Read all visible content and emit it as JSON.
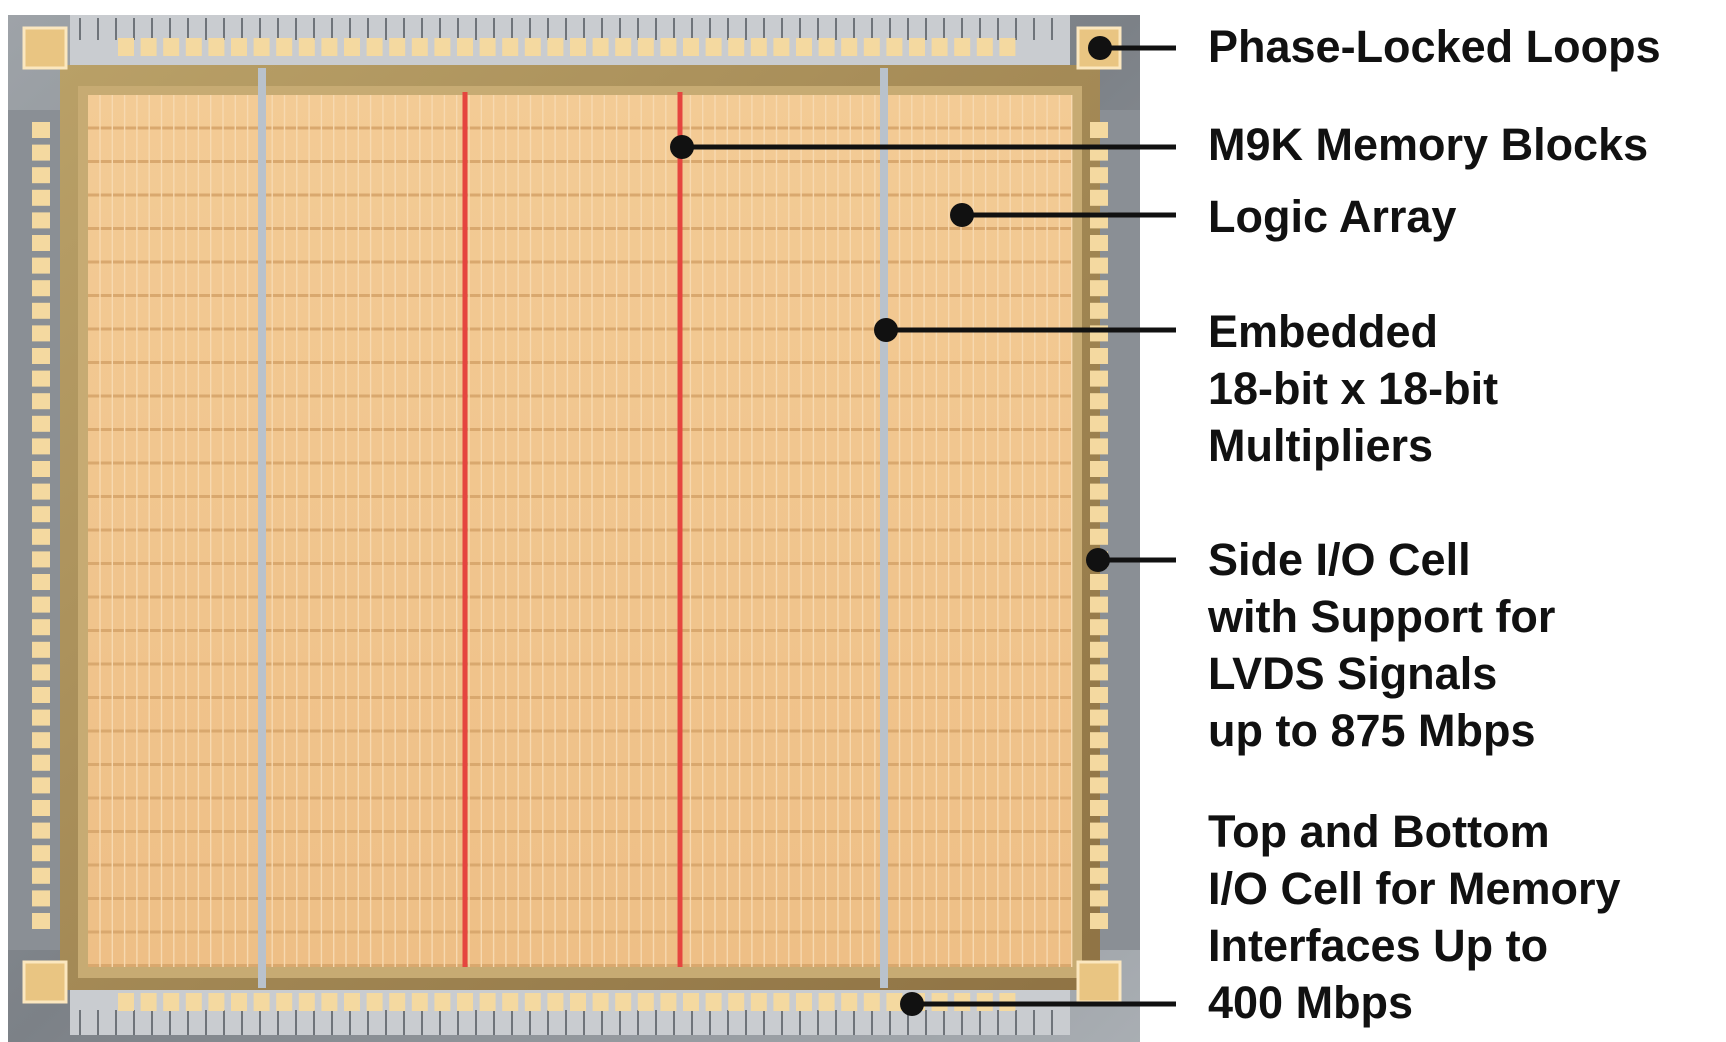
{
  "colors": {
    "pin": "#f4d9a0",
    "core": "#f1c68e",
    "frame": "#a58a52",
    "ring": "#8e949a",
    "memory_column": "#e5453f",
    "multiplier_column": "#b9c2cc",
    "leader": "#111111",
    "text": "#111111"
  },
  "labels": {
    "pll": [
      "Phase-Locked Loops"
    ],
    "m9k": [
      "M9K Memory Blocks"
    ],
    "logic": [
      "Logic Array"
    ],
    "mult": [
      "Embedded",
      "18-bit x 18-bit",
      "Multipliers"
    ],
    "side_io": [
      "Side I/O Cell",
      "with Support for",
      "LVDS Signals",
      "up to 875 Mbps"
    ],
    "tb_io": [
      "Top and Bottom",
      "I/O Cell for Memory",
      "Interfaces Up to",
      "400 Mbps"
    ]
  }
}
